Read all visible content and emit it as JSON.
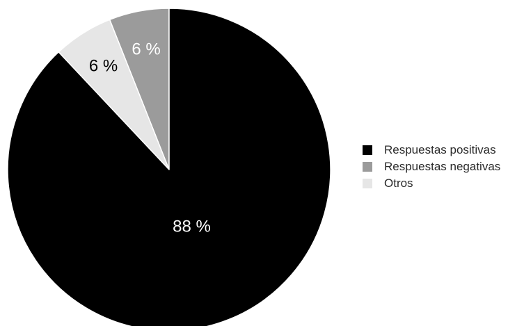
{
  "chart_data": {
    "type": "pie",
    "title": "",
    "slices": [
      {
        "name": "Respuestas negativas",
        "value": 6,
        "label": "6 %",
        "color": "#9b9b9b",
        "label_color": "#ffffff"
      },
      {
        "name": "Otros",
        "value": 6,
        "label": "6 %",
        "color": "#e6e6e6",
        "label_color": "#000000"
      },
      {
        "name": "Respuestas positivas",
        "value": 88,
        "label": "88 %",
        "color": "#000000",
        "label_color": "#ffffff"
      }
    ],
    "legend": {
      "placement": "right",
      "items": [
        {
          "label": "Respuestas positivas",
          "color": "#000000"
        },
        {
          "label": "Respuestas negativas",
          "color": "#9b9b9b"
        },
        {
          "label": "Otros",
          "color": "#e6e6e6"
        }
      ]
    }
  }
}
